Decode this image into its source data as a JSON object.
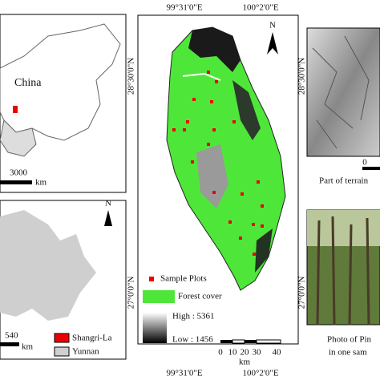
{
  "china_panel": {
    "label": "China",
    "scale_value": "3000",
    "scale_unit": "km"
  },
  "yunnan_panel": {
    "north": "N",
    "scale_value": "540",
    "scale_unit": "km",
    "legend": [
      "Shangri-La",
      "Yunnan"
    ]
  },
  "main_map": {
    "top_lon": [
      "99°31'0\"E",
      "100°2'0\"E"
    ],
    "bottom_lon": [
      "99°31'0\"E",
      "100°2'0\"E"
    ],
    "lat": [
      "28°30'0\"N",
      "27°0'0\"N"
    ],
    "north": "N",
    "legend": {
      "sample": "Sample Plots",
      "forest": "Forest cover",
      "high": "High : 5361",
      "low": "Low : 1456"
    },
    "scale": {
      "ticks": [
        "0",
        "10",
        "20",
        "30",
        "40"
      ],
      "unit": "km"
    }
  },
  "terrain_panel": {
    "lat": "28°30'0\"N",
    "scale_zero": "0",
    "caption": "Part of terrain"
  },
  "photo_panel": {
    "lat": "27°0'0\"N",
    "caption": [
      "Photo of Pin",
      "in one sam"
    ]
  }
}
